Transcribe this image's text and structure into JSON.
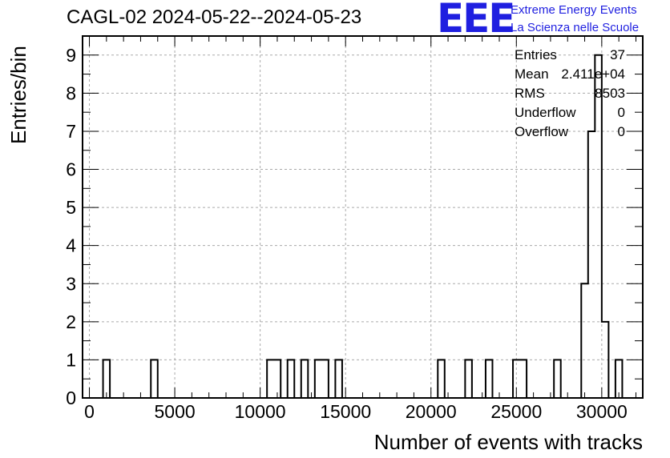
{
  "chart_data": {
    "type": "bar",
    "title": "CAGL-02 2024-05-22--2024-05-23",
    "xlabel": "Number of events with tracks",
    "ylabel": "Entries/bin",
    "xlim": [
      -400,
      32400
    ],
    "ylim": [
      0,
      9.5
    ],
    "bin_width": 400,
    "grid": true,
    "x_ticks": [
      0,
      5000,
      10000,
      15000,
      20000,
      25000,
      30000
    ],
    "y_ticks": [
      0,
      1,
      2,
      3,
      4,
      5,
      6,
      7,
      8,
      9
    ],
    "bins": [
      {
        "x": 800,
        "value": 1
      },
      {
        "x": 3600,
        "value": 1
      },
      {
        "x": 10400,
        "value": 1
      },
      {
        "x": 10800,
        "value": 1
      },
      {
        "x": 11600,
        "value": 1
      },
      {
        "x": 12400,
        "value": 1
      },
      {
        "x": 13200,
        "value": 1
      },
      {
        "x": 13600,
        "value": 1
      },
      {
        "x": 14400,
        "value": 1
      },
      {
        "x": 20400,
        "value": 1
      },
      {
        "x": 22000,
        "value": 1
      },
      {
        "x": 23200,
        "value": 1
      },
      {
        "x": 24800,
        "value": 1
      },
      {
        "x": 25200,
        "value": 1
      },
      {
        "x": 27200,
        "value": 1
      },
      {
        "x": 28800,
        "value": 3
      },
      {
        "x": 29200,
        "value": 7
      },
      {
        "x": 29600,
        "value": 9
      },
      {
        "x": 30000,
        "value": 2
      },
      {
        "x": 30800,
        "value": 1
      }
    ],
    "stats_legend_position": "top-right"
  },
  "stats": [
    {
      "label": "Entries",
      "value": "37"
    },
    {
      "label": "Mean",
      "value": "2.411e+04"
    },
    {
      "label": "RMS",
      "value": "8503"
    },
    {
      "label": "Underflow",
      "value": "0"
    },
    {
      "label": "Overflow",
      "value": "0"
    }
  ],
  "logo": {
    "mark": "EEE",
    "line1": "Extreme Energy Events",
    "line2": "La Scienza nelle Scuole",
    "color": "#1f1fe0"
  }
}
